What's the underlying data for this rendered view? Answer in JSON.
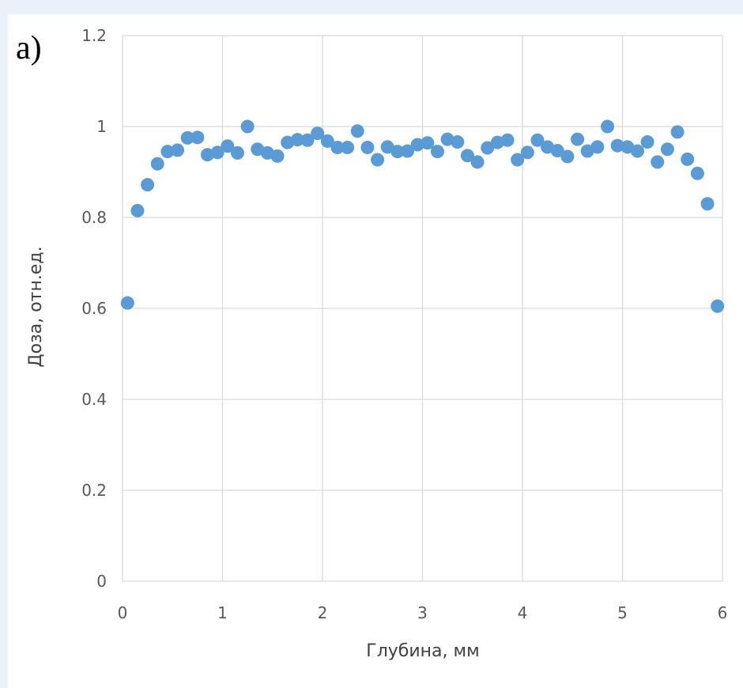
{
  "panel_label": "а)",
  "chart_data": {
    "type": "scatter",
    "xlabel": "Глубина, мм",
    "ylabel": "Доза, отн.ед.",
    "xlim": [
      0,
      6
    ],
    "ylim": [
      0,
      1.2
    ],
    "x_ticks": [
      "0",
      "1",
      "2",
      "3",
      "4",
      "5",
      "6"
    ],
    "y_ticks": [
      "0",
      "0.2",
      "0.4",
      "0.6",
      "0.8",
      "1",
      "1.2"
    ],
    "grid": true,
    "marker_color": "#5b9bd5",
    "x": [
      0.05,
      0.15,
      0.25,
      0.35,
      0.45,
      0.55,
      0.65,
      0.75,
      0.85,
      0.95,
      1.05,
      1.15,
      1.25,
      1.35,
      1.45,
      1.55,
      1.65,
      1.75,
      1.85,
      1.95,
      2.05,
      2.15,
      2.25,
      2.35,
      2.45,
      2.55,
      2.65,
      2.75,
      2.85,
      2.95,
      3.05,
      3.15,
      3.25,
      3.35,
      3.45,
      3.55,
      3.65,
      3.75,
      3.85,
      3.95,
      4.05,
      4.15,
      4.25,
      4.35,
      4.45,
      4.55,
      4.65,
      4.75,
      4.85,
      4.95,
      5.05,
      5.15,
      5.25,
      5.35,
      5.45,
      5.55,
      5.65,
      5.75,
      5.85,
      5.95
    ],
    "y": [
      0.612,
      0.815,
      0.872,
      0.918,
      0.945,
      0.948,
      0.975,
      0.976,
      0.938,
      0.943,
      0.957,
      0.942,
      1.0,
      0.95,
      0.942,
      0.935,
      0.965,
      0.971,
      0.97,
      0.985,
      0.968,
      0.954,
      0.954,
      0.99,
      0.954,
      0.927,
      0.955,
      0.945,
      0.946,
      0.96,
      0.964,
      0.945,
      0.972,
      0.966,
      0.936,
      0.922,
      0.953,
      0.965,
      0.97,
      0.927,
      0.943,
      0.97,
      0.955,
      0.947,
      0.934,
      0.972,
      0.946,
      0.955,
      1.0,
      0.958,
      0.955,
      0.946,
      0.966,
      0.922,
      0.95,
      0.988,
      0.928,
      0.897,
      0.83,
      0.605
    ]
  }
}
